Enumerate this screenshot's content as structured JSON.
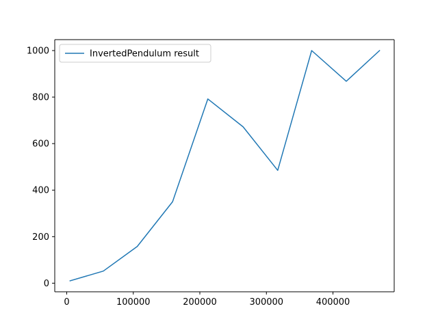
{
  "chart_data": {
    "type": "line",
    "title": "",
    "xlabel": "",
    "ylabel": "",
    "xlim": [
      -18000,
      492000
    ],
    "ylim": [
      -37,
      1047
    ],
    "xticks": [
      0,
      100000,
      200000,
      300000,
      400000
    ],
    "xtick_labels": [
      "0",
      "100000",
      "200000",
      "300000",
      "400000"
    ],
    "yticks": [
      0,
      200,
      400,
      600,
      800,
      1000
    ],
    "ytick_labels": [
      "0",
      "200",
      "400",
      "600",
      "800",
      "1000"
    ],
    "grid": false,
    "legend_position": "upper-left",
    "series": [
      {
        "name": "InvertedPendulum result",
        "color": "#1f77b4",
        "x": [
          5000,
          55000,
          106000,
          159000,
          212000,
          265000,
          317000,
          368000,
          420000,
          470000
        ],
        "y": [
          10,
          52,
          158,
          350,
          792,
          672,
          485,
          1000,
          868,
          1000
        ]
      }
    ]
  }
}
